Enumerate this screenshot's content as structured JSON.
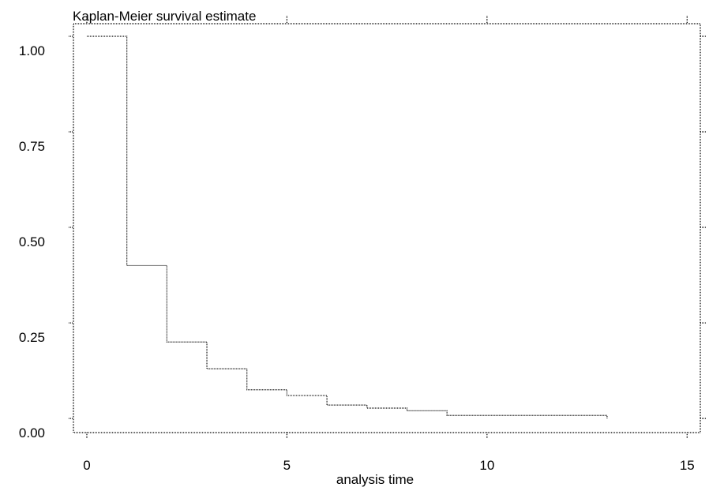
{
  "chart_data": {
    "type": "step",
    "title": "Kaplan-Meier survival estimate",
    "x_label": "analysis time",
    "x": [
      0,
      1,
      2,
      3,
      4,
      5,
      6,
      7,
      8,
      9,
      13
    ],
    "values": [
      1,
      0.4,
      0.2,
      0.13,
      0.075,
      0.06,
      0.035,
      0.027,
      0.02,
      0.008,
      0
    ],
    "color": "#000000",
    "xlim": [
      -0.335,
      15.33
    ],
    "ylim": [
      -0.037,
      1.033
    ],
    "xticks": [
      0,
      5,
      10,
      15
    ],
    "yticks": [
      {
        "value": 0,
        "label": "0.00"
      },
      {
        "value": 0.25,
        "label": "0.25"
      },
      {
        "value": 0.5,
        "label": "0.50"
      },
      {
        "value": 0.75,
        "label": "0.75"
      },
      {
        "value": 1,
        "label": "1.00"
      }
    ]
  }
}
